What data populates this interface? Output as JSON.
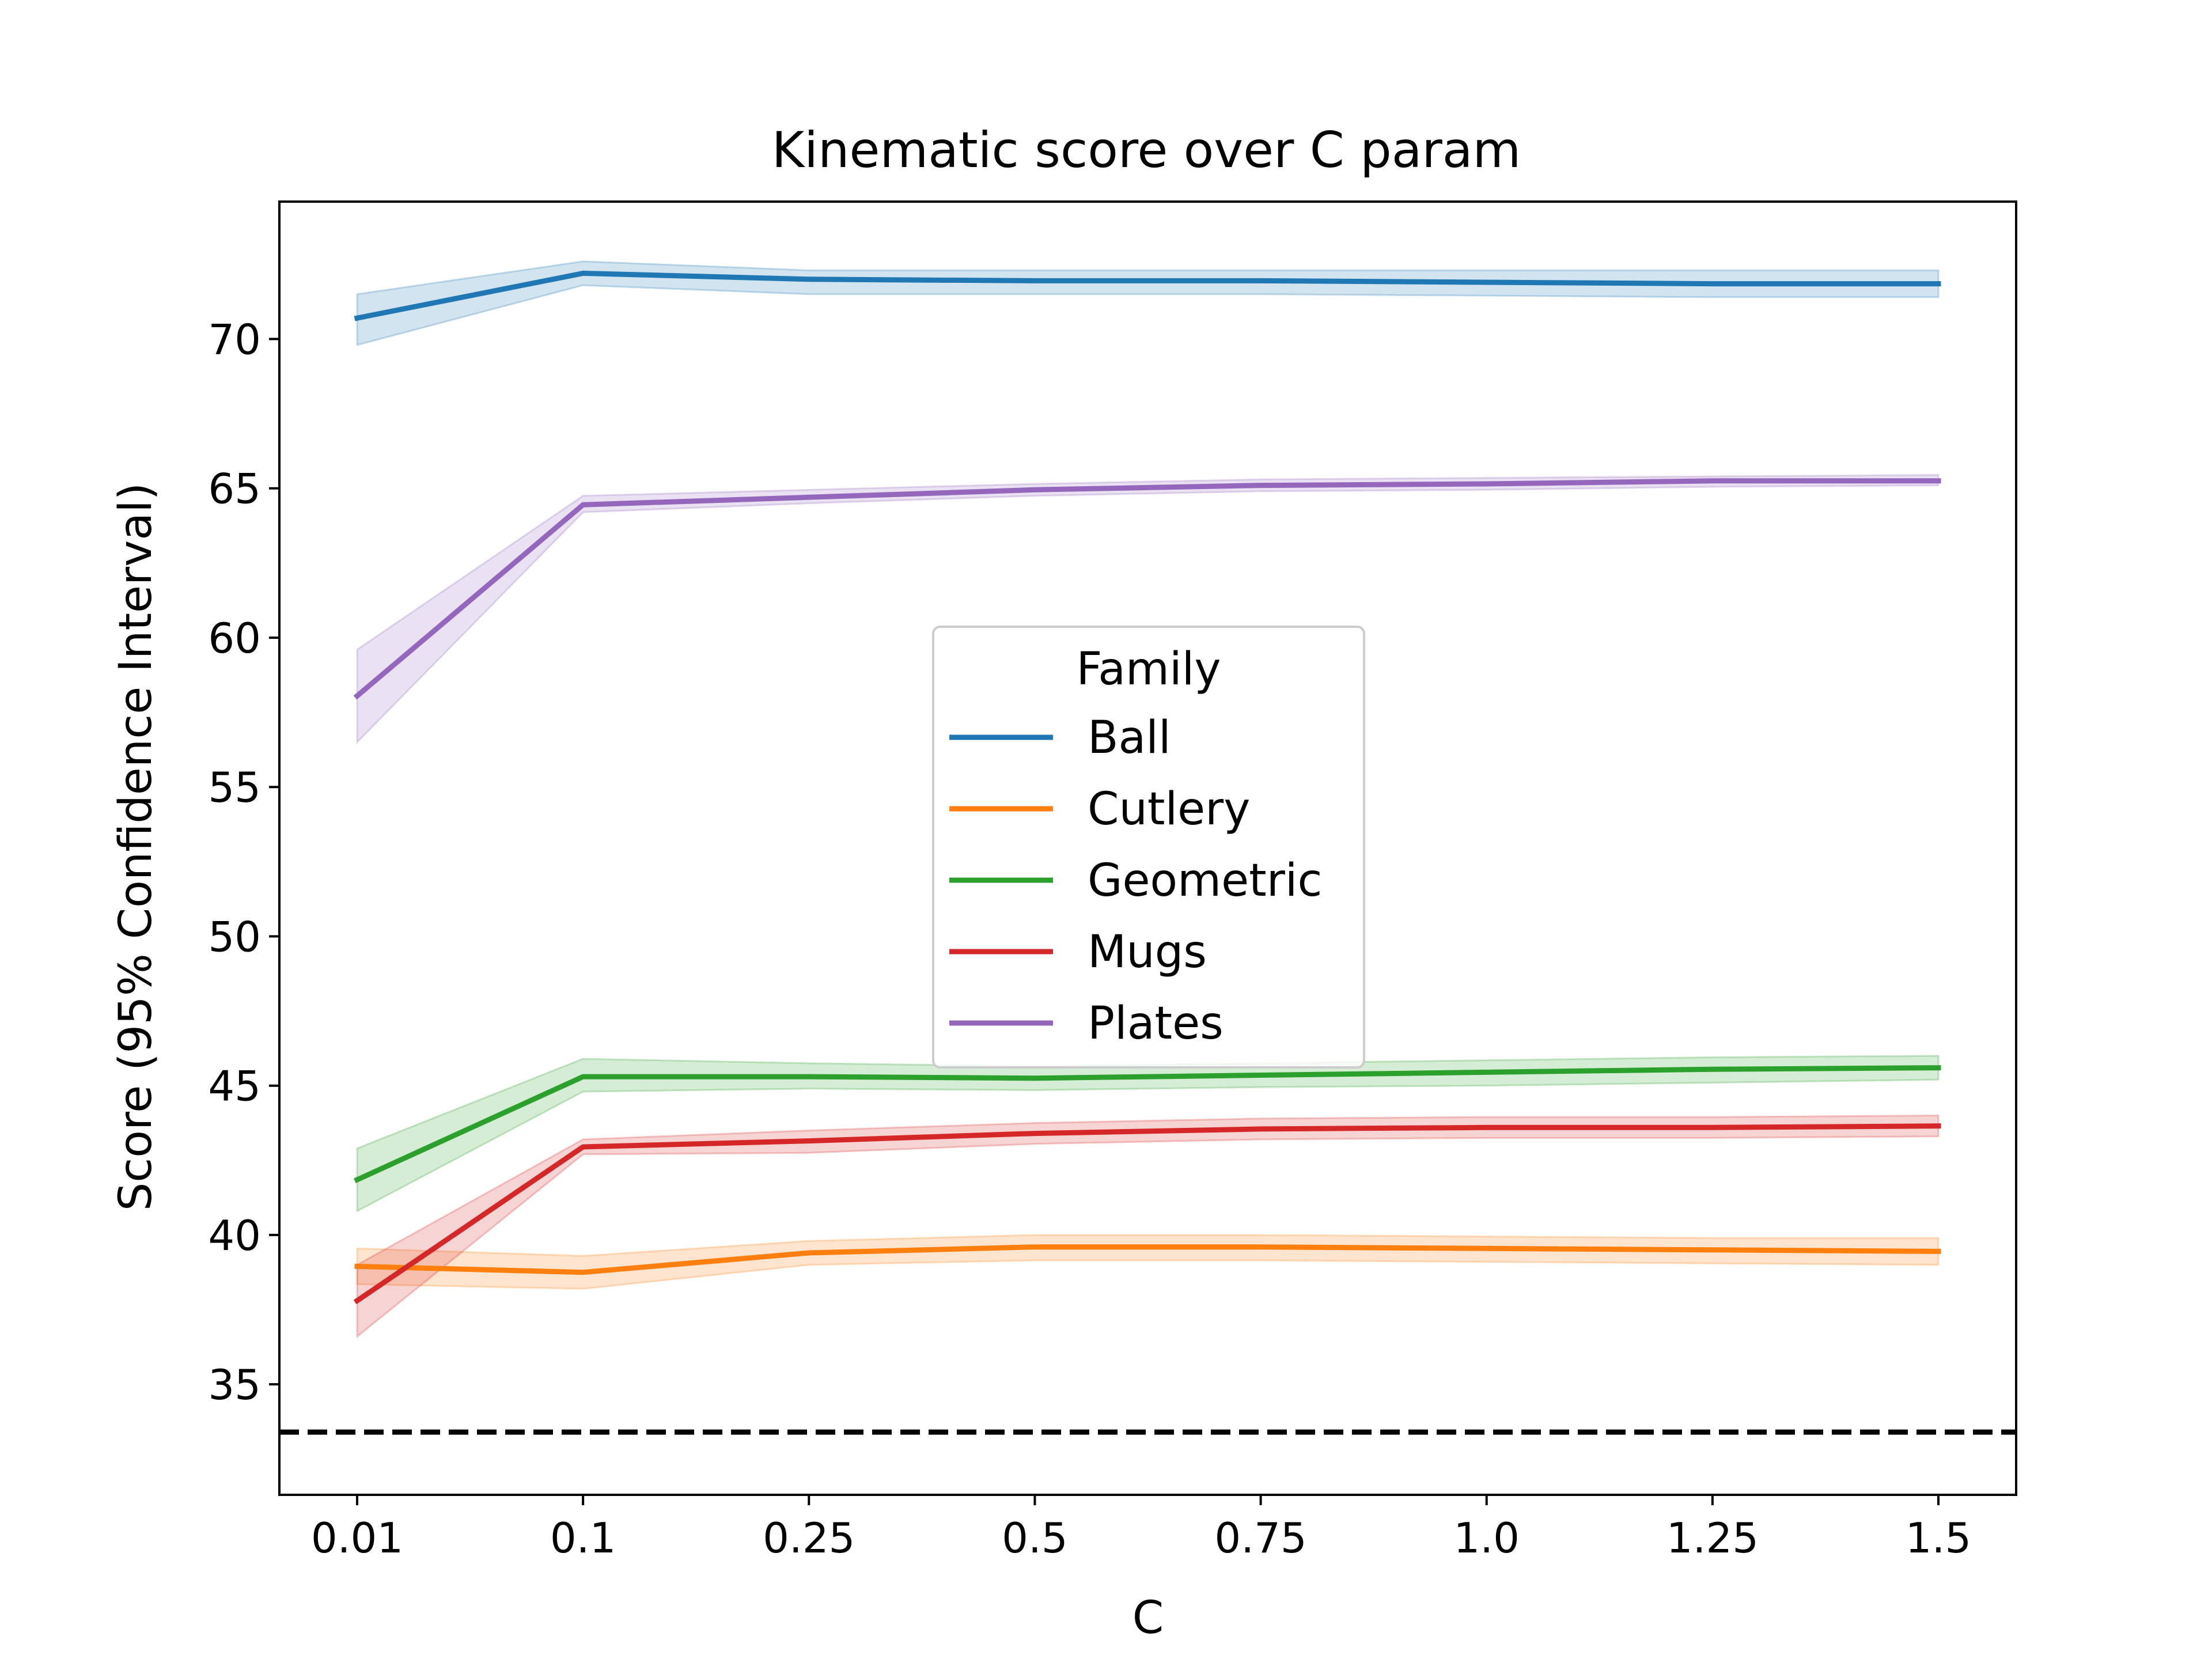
{
  "chart_data": {
    "type": "line",
    "title": "Kinematic score over C param",
    "xlabel": "C",
    "ylabel": "Score (95% Confidence Interval)",
    "x": [
      "0.01",
      "0.1",
      "0.25",
      "0.5",
      "0.75",
      "1.0",
      "1.25",
      "1.5"
    ],
    "yticks": [
      35,
      40,
      45,
      50,
      55,
      60,
      65,
      70
    ],
    "ylim": [
      31.3,
      74.6
    ],
    "grid": false,
    "legend": {
      "title": "Family",
      "placement": "center"
    },
    "baseline": {
      "value": 33.4,
      "style": "dashed",
      "color": "#000000"
    },
    "series": [
      {
        "name": "Ball",
        "color": "#1f77b4",
        "values": [
          70.7,
          72.2,
          72.0,
          71.95,
          71.95,
          71.9,
          71.85,
          71.85
        ],
        "lower": [
          69.8,
          71.8,
          71.5,
          71.5,
          71.5,
          71.45,
          71.4,
          71.4
        ],
        "upper": [
          71.5,
          72.6,
          72.3,
          72.3,
          72.3,
          72.3,
          72.3,
          72.3
        ]
      },
      {
        "name": "Cutlery",
        "color": "#ff7f0e",
        "values": [
          38.95,
          38.75,
          39.4,
          39.6,
          39.6,
          39.55,
          39.5,
          39.45
        ],
        "lower": [
          38.35,
          38.2,
          39.0,
          39.15,
          39.15,
          39.1,
          39.05,
          39.0
        ],
        "upper": [
          39.55,
          39.3,
          39.8,
          40.0,
          40.0,
          39.95,
          39.9,
          39.9
        ]
      },
      {
        "name": "Geometric",
        "color": "#2ca02c",
        "values": [
          41.85,
          45.3,
          45.3,
          45.25,
          45.35,
          45.45,
          45.55,
          45.6
        ],
        "lower": [
          40.8,
          44.8,
          44.9,
          44.85,
          44.95,
          45.0,
          45.1,
          45.2
        ],
        "upper": [
          42.9,
          45.9,
          45.75,
          45.65,
          45.75,
          45.85,
          45.95,
          46.0
        ]
      },
      {
        "name": "Mugs",
        "color": "#d62728",
        "values": [
          37.8,
          42.95,
          43.15,
          43.4,
          43.55,
          43.6,
          43.6,
          43.65
        ],
        "lower": [
          36.6,
          42.7,
          42.75,
          43.05,
          43.2,
          43.25,
          43.25,
          43.3
        ],
        "upper": [
          39.0,
          43.2,
          43.5,
          43.75,
          43.9,
          43.95,
          43.95,
          44.0
        ]
      },
      {
        "name": "Plates",
        "color": "#9467bd",
        "values": [
          58.05,
          64.45,
          64.7,
          64.95,
          65.1,
          65.15,
          65.25,
          65.25
        ],
        "lower": [
          56.5,
          64.2,
          64.5,
          64.75,
          64.9,
          64.95,
          65.05,
          65.1
        ],
        "upper": [
          59.6,
          64.75,
          64.95,
          65.15,
          65.3,
          65.35,
          65.4,
          65.45
        ]
      }
    ]
  }
}
